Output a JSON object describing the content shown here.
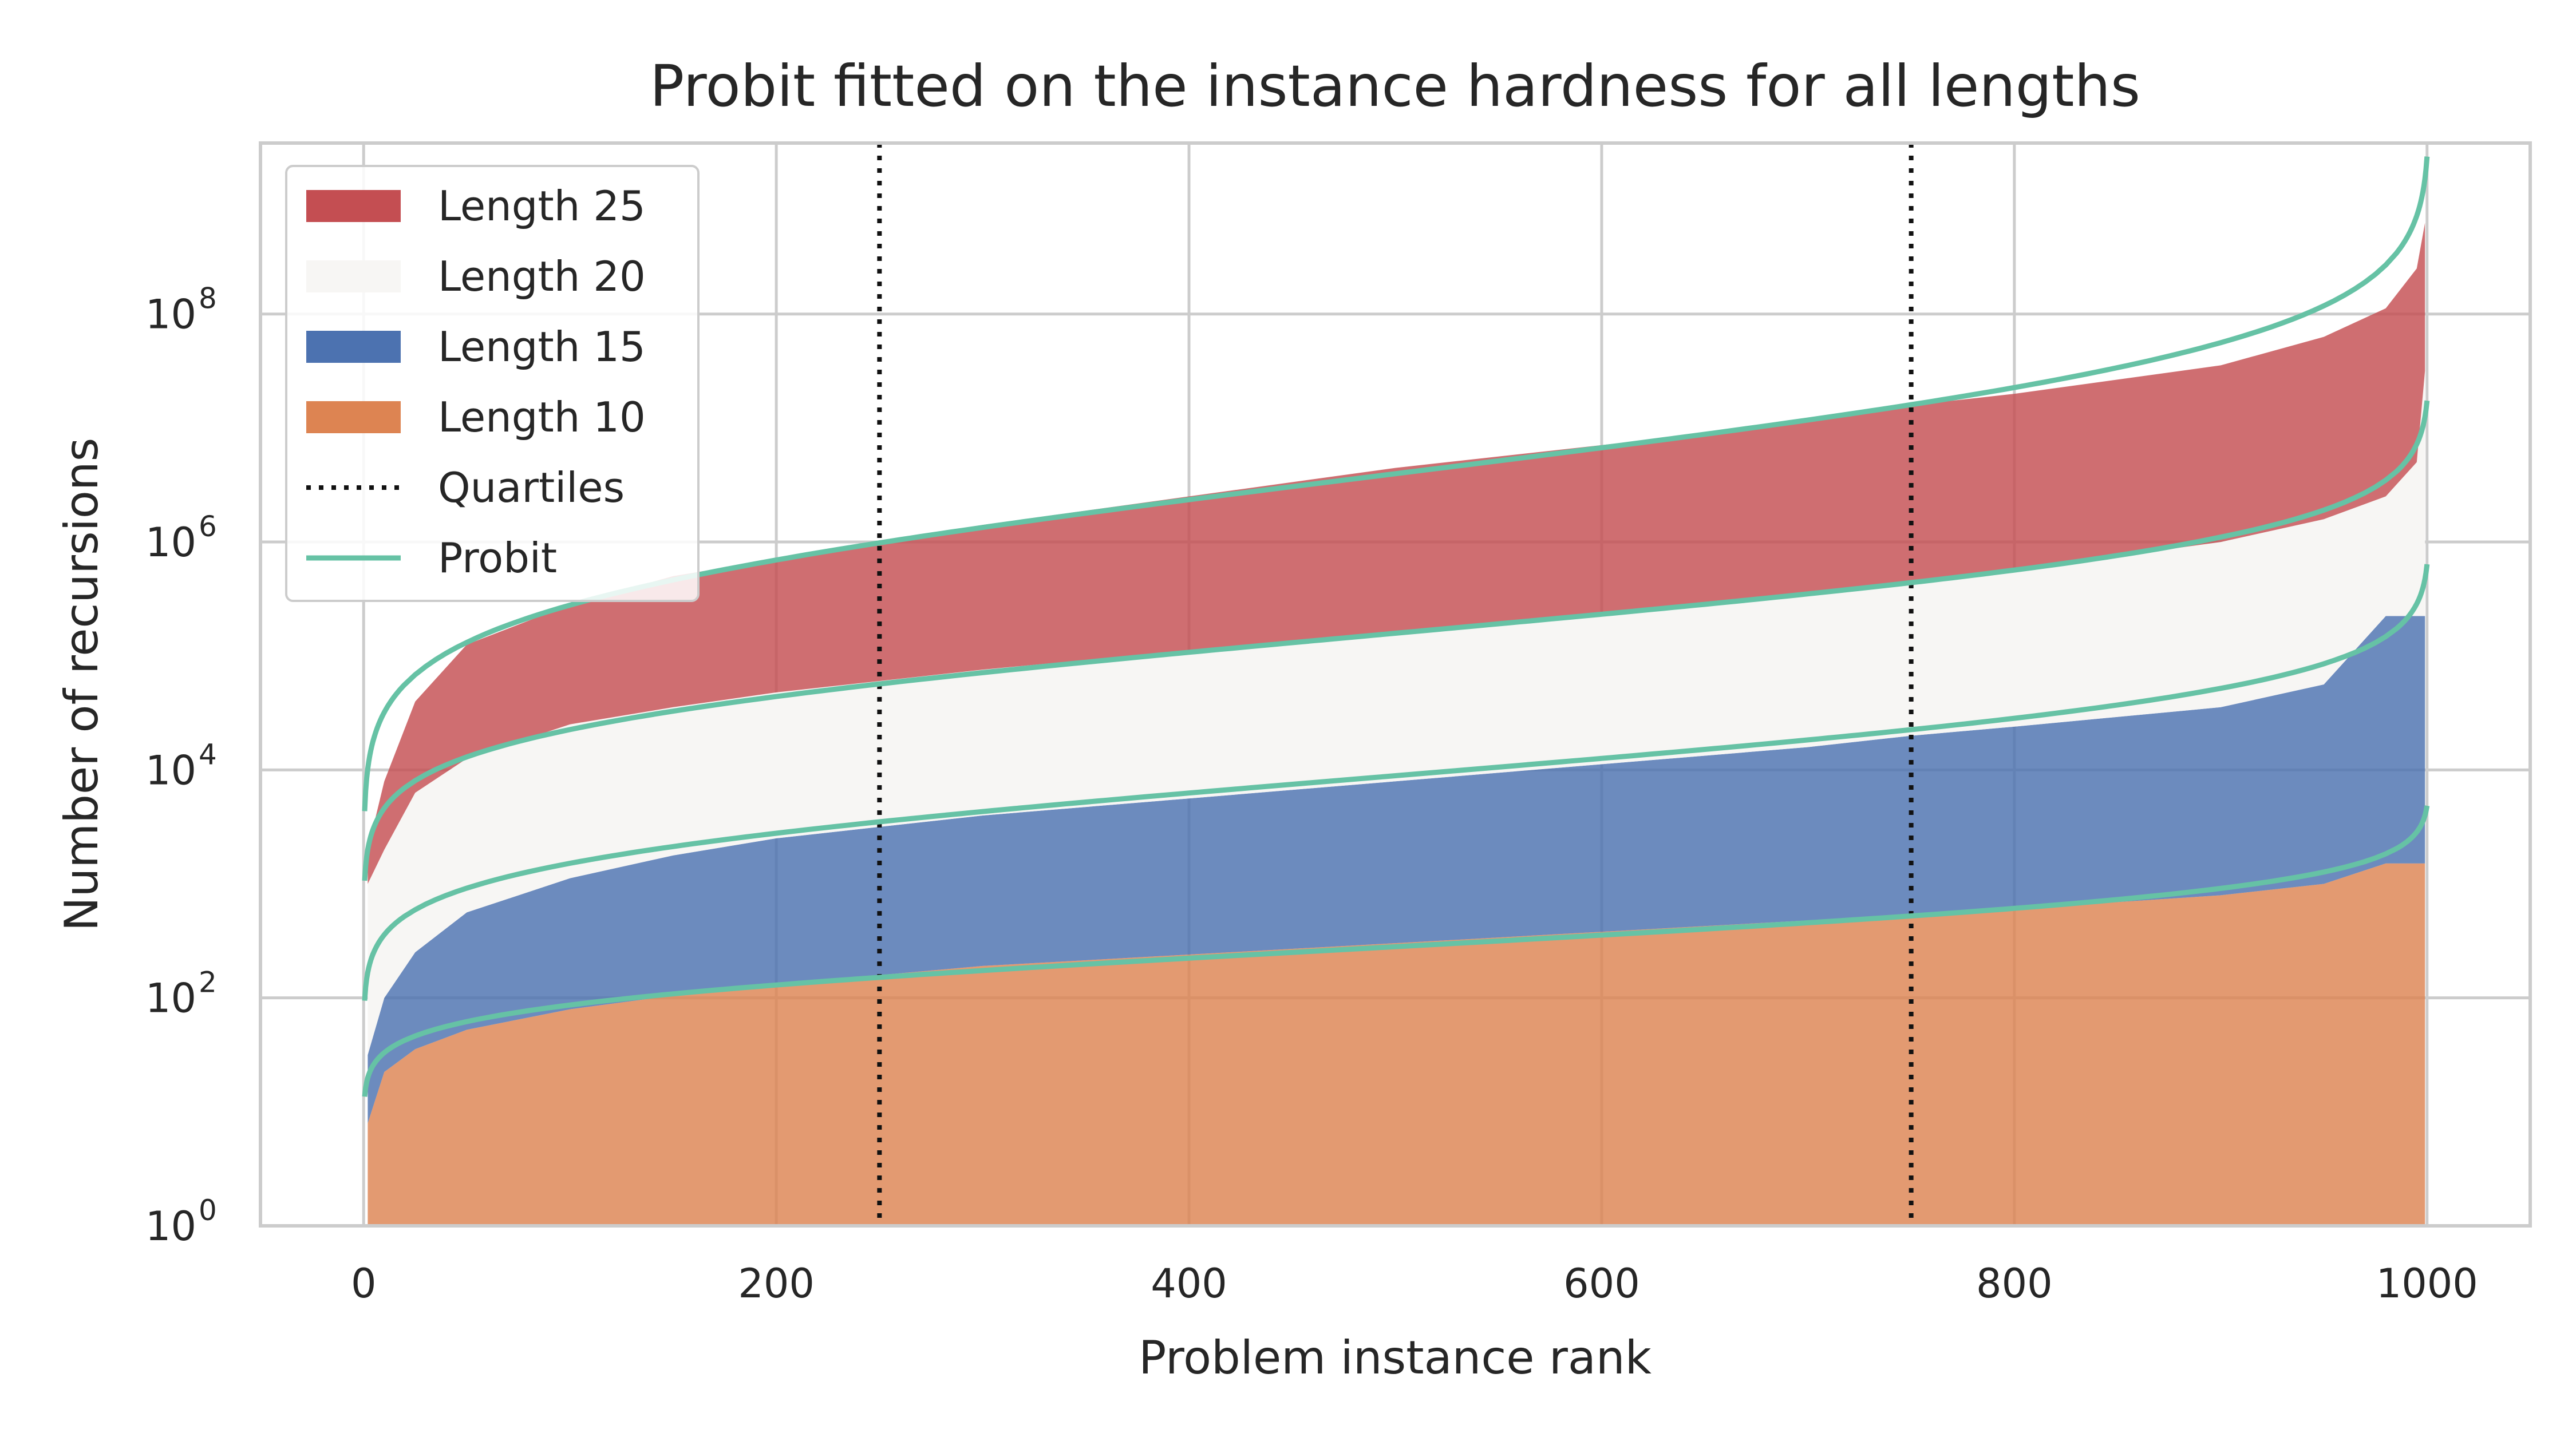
{
  "chart_data": {
    "type": "area",
    "title": "Probit fitted on the instance hardness for all lengths",
    "xlabel": "Problem instance rank",
    "ylabel": "Number of recursions",
    "xlim": [
      -50,
      1050
    ],
    "ylim_log10": [
      0,
      9.5
    ],
    "y_scale": "log",
    "grid": true,
    "legend_position": "top-left",
    "x_ticks": [
      0,
      200,
      400,
      600,
      800,
      1000
    ],
    "x_tick_labels": [
      "0",
      "200",
      "400",
      "600",
      "800",
      "1000"
    ],
    "y_ticks_log10": [
      0,
      2,
      4,
      6,
      8
    ],
    "y_tick_base": "10",
    "y_tick_exponents": [
      "0",
      "2",
      "4",
      "6",
      "8"
    ],
    "quartiles": [
      250,
      750
    ],
    "legend": [
      {
        "label": "Length 25",
        "type": "patch",
        "color": "#c44e52"
      },
      {
        "label": "Length 20",
        "type": "patch",
        "color": "#f7f6f4"
      },
      {
        "label": "Length 15",
        "type": "patch",
        "color": "#4c72b0"
      },
      {
        "label": "Length 10",
        "type": "patch",
        "color": "#dd8452"
      },
      {
        "label": "Quartiles",
        "type": "dotted",
        "color": "#111111"
      },
      {
        "label": "Probit",
        "type": "line",
        "color": "#66c2a5"
      }
    ],
    "series": [
      {
        "name": "Length 25",
        "color": "#c44e52",
        "rank": [
          2,
          10,
          25,
          50,
          100,
          150,
          200,
          250,
          300,
          400,
          500,
          600,
          700,
          750,
          800,
          900,
          950,
          980,
          995,
          999
        ],
        "log10_top": [
          3.3,
          3.9,
          4.6,
          5.1,
          5.45,
          5.7,
          5.85,
          6.0,
          6.15,
          6.4,
          6.65,
          6.85,
          7.05,
          7.2,
          7.3,
          7.55,
          7.8,
          8.05,
          8.4,
          8.8
        ],
        "log10_bottom": [
          3.0,
          3.3,
          3.8,
          4.1,
          4.4,
          4.55,
          4.68,
          4.78,
          4.88,
          5.05,
          5.2,
          5.38,
          5.55,
          5.65,
          5.75,
          6.0,
          6.2,
          6.4,
          6.7,
          7.5
        ]
      },
      {
        "name": "Length 20",
        "color": "#f7f6f4",
        "rank": [
          2,
          10,
          25,
          50,
          100,
          150,
          200,
          250,
          300,
          400,
          500,
          600,
          700,
          750,
          800,
          900,
          950,
          980,
          995,
          999
        ],
        "log10_top": [
          3.0,
          3.3,
          3.8,
          4.1,
          4.4,
          4.55,
          4.68,
          4.78,
          4.88,
          5.05,
          5.2,
          5.38,
          5.55,
          5.65,
          5.75,
          6.0,
          6.2,
          6.4,
          6.7,
          7.5
        ],
        "log10_bottom": [
          1.5,
          2.0,
          2.4,
          2.75,
          3.05,
          3.25,
          3.4,
          3.5,
          3.6,
          3.75,
          3.9,
          4.05,
          4.2,
          4.3,
          4.38,
          4.55,
          4.75,
          5.35,
          5.35,
          5.35
        ]
      },
      {
        "name": "Length 15",
        "color": "#4c72b0",
        "rank": [
          2,
          10,
          25,
          50,
          100,
          150,
          200,
          250,
          300,
          400,
          500,
          600,
          700,
          750,
          800,
          900,
          950,
          980,
          995,
          999
        ],
        "log10_top": [
          1.5,
          2.0,
          2.4,
          2.75,
          3.05,
          3.25,
          3.4,
          3.5,
          3.6,
          3.75,
          3.9,
          4.05,
          4.2,
          4.3,
          4.38,
          4.55,
          4.75,
          5.35,
          5.35,
          5.35
        ],
        "log10_bottom": [
          0.9,
          1.35,
          1.55,
          1.72,
          1.9,
          2.02,
          2.12,
          2.2,
          2.28,
          2.38,
          2.48,
          2.58,
          2.68,
          2.72,
          2.78,
          2.9,
          3.0,
          3.18,
          3.18,
          3.18
        ]
      },
      {
        "name": "Length 10",
        "color": "#dd8452",
        "rank": [
          2,
          10,
          25,
          50,
          100,
          150,
          200,
          250,
          300,
          400,
          500,
          600,
          700,
          750,
          800,
          900,
          950,
          980,
          995,
          999
        ],
        "log10_top": [
          0.9,
          1.35,
          1.55,
          1.72,
          1.9,
          2.02,
          2.12,
          2.2,
          2.28,
          2.38,
          2.48,
          2.58,
          2.68,
          2.72,
          2.78,
          2.9,
          3.0,
          3.18,
          3.18,
          3.18
        ],
        "log10_bottom": [
          0,
          0,
          0,
          0,
          0,
          0,
          0,
          0,
          0,
          0,
          0,
          0,
          0,
          0,
          0,
          0,
          0,
          0,
          0,
          0
        ]
      }
    ],
    "probit_fits": [
      {
        "name": "Length 25",
        "log10_mu": 6.6,
        "log10_sigma": 0.9
      },
      {
        "name": "Length 20",
        "log10_mu": 5.2,
        "log10_sigma": 0.66
      },
      {
        "name": "Length 15",
        "log10_mu": 3.95,
        "log10_sigma": 0.6
      },
      {
        "name": "Length 10",
        "log10_mu": 2.45,
        "log10_sigma": 0.4
      }
    ]
  }
}
